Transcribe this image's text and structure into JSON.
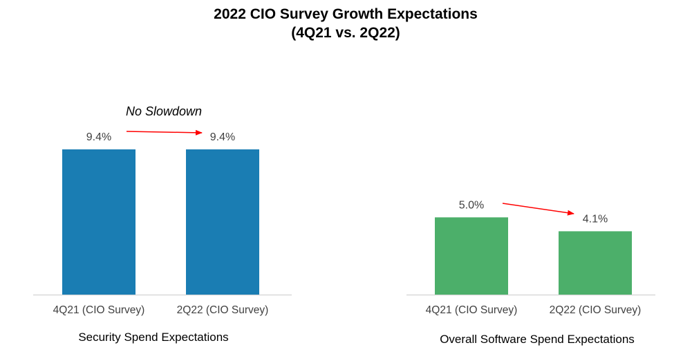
{
  "chart_data": {
    "type": "bar",
    "title": "2022 CIO Survey Growth Expectations",
    "subtitle": "(4Q21 vs. 2Q22)",
    "categories": [
      "4Q21 (CIO Survey)",
      "2Q22 (CIO Survey)",
      "4Q21 (CIO Survey)",
      "2Q22 (CIO Survey)"
    ],
    "groups": [
      {
        "name": "Security Spend Expectations",
        "color": "#1a7db3",
        "annotation": "No Slowdown",
        "bars": [
          {
            "category": "4Q21 (CIO Survey)",
            "value": 9.4,
            "label": "9.4%"
          },
          {
            "category": "2Q22 (CIO Survey)",
            "value": 9.4,
            "label": "9.4%"
          }
        ]
      },
      {
        "name": "Overall Software Spend Expectations",
        "color": "#4caf6a",
        "annotation": "",
        "bars": [
          {
            "category": "4Q21 (CIO Survey)",
            "value": 5.0,
            "label": "5.0%"
          },
          {
            "category": "2Q22 (CIO Survey)",
            "value": 4.1,
            "label": "4.1%"
          }
        ]
      }
    ],
    "arrow_color": "#ff0000",
    "axis_color": "#d9d9d9",
    "grid": false,
    "ylim": [
      0,
      9.4
    ]
  }
}
